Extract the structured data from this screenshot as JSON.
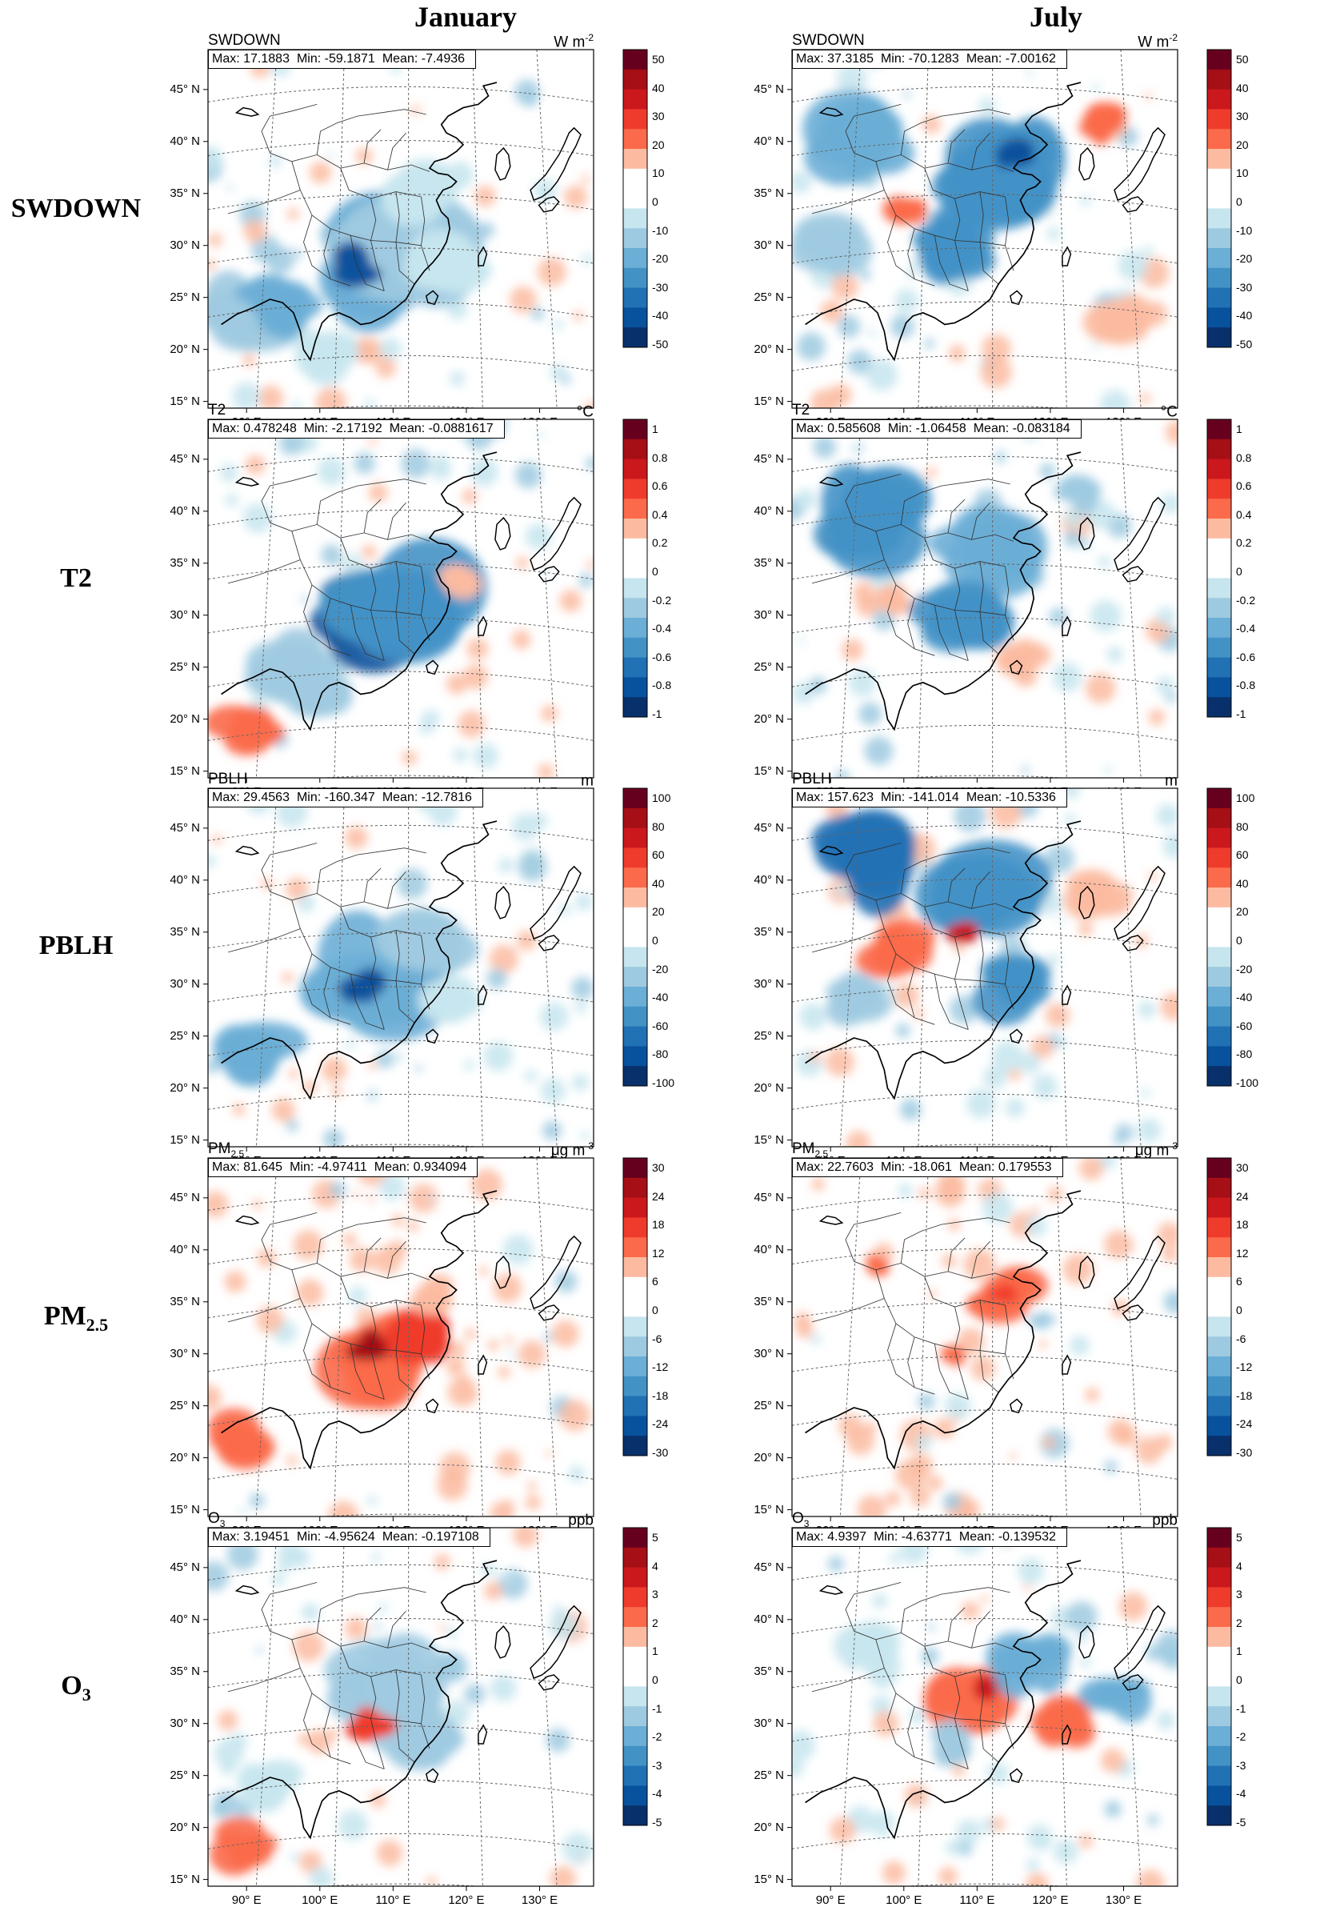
{
  "columns": [
    "January",
    "July"
  ],
  "rows": [
    {
      "label": "SWDOWN",
      "label_main": "SWDOWN",
      "label_sub": "",
      "var_main": "SWDOWN",
      "var_sub": "",
      "unit_main": "W m",
      "unit_sup": "-2",
      "cbar_ticks": [
        "50",
        "40",
        "30",
        "20",
        "10",
        "0",
        "-10",
        "-20",
        "-30",
        "-40",
        "-50"
      ],
      "panels": [
        {
          "max": "17.1883",
          "min": "-59.1871",
          "mean": "-7.4936"
        },
        {
          "max": "37.3185",
          "min": "-70.1283",
          "mean": "-7.00162"
        }
      ]
    },
    {
      "label": "T2",
      "label_main": "T2",
      "label_sub": "",
      "var_main": "T2",
      "var_sub": "",
      "unit_main": "°C",
      "unit_sup": "",
      "cbar_ticks": [
        "1",
        "0.8",
        "0.6",
        "0.4",
        "0.2",
        "0",
        "-0.2",
        "-0.4",
        "-0.6",
        "-0.8",
        "-1"
      ],
      "panels": [
        {
          "max": "0.478248",
          "min": "-2.17192",
          "mean": "-0.0881617"
        },
        {
          "max": "0.585608",
          "min": "-1.06458",
          "mean": "-0.083184"
        }
      ]
    },
    {
      "label": "PBLH",
      "label_main": "PBLH",
      "label_sub": "",
      "var_main": "PBLH",
      "var_sub": "",
      "unit_main": "m",
      "unit_sup": "",
      "cbar_ticks": [
        "100",
        "80",
        "60",
        "40",
        "20",
        "0",
        "-20",
        "-40",
        "-60",
        "-80",
        "-100"
      ],
      "panels": [
        {
          "max": "29.4563",
          "min": "-160.347",
          "mean": "-12.7816"
        },
        {
          "max": "157.623",
          "min": "-141.014",
          "mean": "-10.5336"
        }
      ]
    },
    {
      "label": "PM2.5",
      "label_main": "PM",
      "label_sub": "2.5",
      "var_main": "PM",
      "var_sub": "2.5",
      "unit_main": "μg m",
      "unit_sup": "-3",
      "cbar_ticks": [
        "30",
        "24",
        "18",
        "12",
        "6",
        "0",
        "-6",
        "-12",
        "-18",
        "-24",
        "-30"
      ],
      "panels": [
        {
          "max": "81.645",
          "min": "-4.97411",
          "mean": "0.934094"
        },
        {
          "max": "22.7603",
          "min": "-18.061",
          "mean": "0.179553"
        }
      ]
    },
    {
      "label": "O3",
      "label_main": "O",
      "label_sub": "3",
      "var_main": "O",
      "var_sub": "3",
      "unit_main": "ppb",
      "unit_sup": "",
      "cbar_ticks": [
        "5",
        "4",
        "3",
        "2",
        "1",
        "0",
        "-1",
        "-2",
        "-3",
        "-4",
        "-5"
      ],
      "panels": [
        {
          "max": "3.19451",
          "min": "-4.95624",
          "mean": "-0.197108"
        },
        {
          "max": "4.9397",
          "min": "-4.63771",
          "mean": "-0.139532"
        }
      ]
    }
  ],
  "stat_labels": {
    "max": "Max:",
    "min": "Min:",
    "mean": "Mean:"
  },
  "lat_labels": [
    "45° N",
    "40° N",
    "35° N",
    "30° N",
    "25° N",
    "20° N",
    "15° N"
  ],
  "lon_labels": [
    "90° E",
    "100° E",
    "110° E",
    "120° E",
    "130° E"
  ],
  "colors": {
    "scale": [
      "#67001f",
      "#a50f15",
      "#cb181d",
      "#ef3b2c",
      "#fb6a4a",
      "#fcbba1",
      "#ffffff",
      "#ffffff",
      "#c6e5ee",
      "#9ecae1",
      "#6baed6",
      "#4292c6",
      "#2171b5",
      "#08519c",
      "#08306b"
    ],
    "reds": [
      "#fcbba1",
      "#fb6a4a",
      "#ef3b2c",
      "#cb181d",
      "#a50f15",
      "#67001f"
    ],
    "blues": [
      "#c6e5ee",
      "#9ecae1",
      "#6baed6",
      "#4292c6",
      "#2171b5",
      "#08519c",
      "#08306b"
    ]
  }
}
